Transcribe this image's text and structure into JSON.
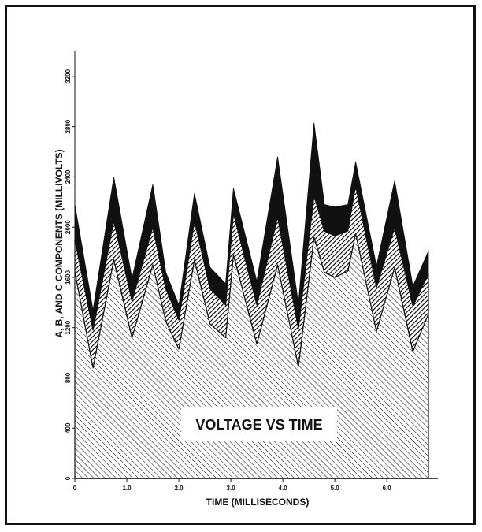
{
  "chart_data": {
    "type": "area",
    "stacked": true,
    "title": "VOLTAGE VS TIME",
    "xlabel": "TIME (MILLISECONDS)",
    "ylabel": "A, B, AND C COMPONENTS (MILLIVOLTS)",
    "xlim": [
      0,
      6.8
    ],
    "ylim": [
      0,
      3400
    ],
    "x_ticks": [
      0,
      1.0,
      2.0,
      3.0,
      4.0,
      5.0,
      6.0
    ],
    "x_tick_labels": [
      "0",
      "1.0",
      "2.0",
      "3.0",
      "4.0",
      "5.0",
      "6.0"
    ],
    "y_ticks": [
      0,
      400,
      800,
      1200,
      1600,
      2000,
      2400,
      2800,
      3200
    ],
    "y_tick_labels": [
      "0",
      "400",
      "800",
      "1200",
      "1600",
      "2000",
      "2400",
      "2800",
      "3200"
    ],
    "x": [
      0,
      0.35,
      0.75,
      1.1,
      1.5,
      1.75,
      2.0,
      2.3,
      2.6,
      2.9,
      3.05,
      3.5,
      3.9,
      4.3,
      4.6,
      4.8,
      5.0,
      5.25,
      5.4,
      5.8,
      6.15,
      6.5,
      6.8
    ],
    "series": [
      {
        "values": [
          1650,
          880,
          1740,
          1120,
          1700,
          1250,
          1030,
          1740,
          1230,
          1120,
          1780,
          1070,
          1700,
          890,
          1920,
          1640,
          1600,
          1650,
          1950,
          1170,
          1680,
          1010,
          1310
        ]
      },
      {
        "values": [
          250,
          300,
          310,
          290,
          300,
          260,
          230,
          310,
          280,
          260,
          330,
          310,
          380,
          300,
          330,
          330,
          330,
          320,
          380,
          350,
          320,
          360,
          320
        ]
      },
      {
        "values": [
          280,
          160,
          350,
          180,
          340,
          130,
          120,
          220,
          170,
          170,
          200,
          190,
          480,
          200,
          580,
          210,
          230,
          210,
          190,
          170,
          370,
          160,
          180
        ]
      }
    ]
  }
}
